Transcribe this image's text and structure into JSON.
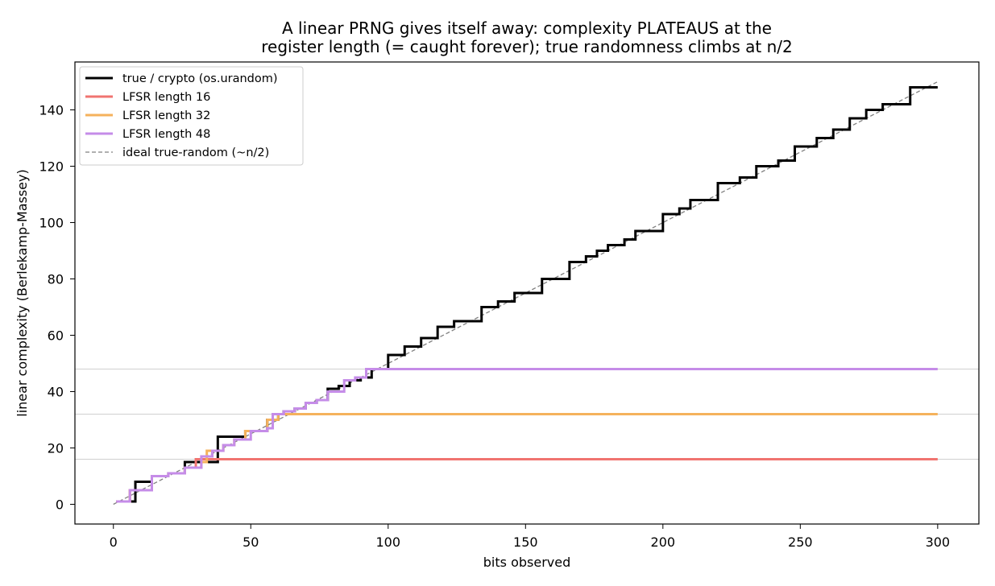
{
  "chart_data": {
    "type": "line",
    "title": [
      "A linear PRNG gives itself away: complexity PLATEAUS at the",
      "register length (= caught forever); true randomness climbs at n/2"
    ],
    "xlabel": "bits observed",
    "ylabel": "linear complexity (Berlekamp-Massey)",
    "xlim": [
      -14,
      315
    ],
    "ylim": [
      -7,
      157
    ],
    "xticks": [
      0,
      50,
      100,
      150,
      200,
      250,
      300
    ],
    "yticks": [
      0,
      20,
      40,
      60,
      80,
      100,
      120,
      140
    ],
    "grid": false,
    "legend_position": "top-left",
    "reference_lines_y": [
      16,
      32,
      48
    ],
    "series": [
      {
        "name": "true / crypto (os.urandom)",
        "color": "#000000",
        "style": "solid",
        "steps": [
          [
            1,
            1
          ],
          [
            8,
            8
          ],
          [
            14,
            10
          ],
          [
            20,
            11
          ],
          [
            26,
            15
          ],
          [
            38,
            24
          ],
          [
            48,
            26
          ],
          [
            52,
            26
          ],
          [
            56,
            30
          ],
          [
            60,
            32
          ],
          [
            62,
            33
          ],
          [
            66,
            34
          ],
          [
            70,
            36
          ],
          [
            74,
            37
          ],
          [
            78,
            41
          ],
          [
            82,
            42
          ],
          [
            86,
            44
          ],
          [
            90,
            45
          ],
          [
            94,
            48
          ],
          [
            100,
            53
          ],
          [
            106,
            56
          ],
          [
            112,
            59
          ],
          [
            118,
            63
          ],
          [
            124,
            65
          ],
          [
            134,
            70
          ],
          [
            140,
            72
          ],
          [
            146,
            75
          ],
          [
            156,
            80
          ],
          [
            166,
            86
          ],
          [
            172,
            88
          ],
          [
            176,
            90
          ],
          [
            180,
            92
          ],
          [
            186,
            94
          ],
          [
            190,
            97
          ],
          [
            200,
            103
          ],
          [
            206,
            105
          ],
          [
            210,
            108
          ],
          [
            220,
            114
          ],
          [
            228,
            116
          ],
          [
            234,
            120
          ],
          [
            242,
            122
          ],
          [
            248,
            127
          ],
          [
            256,
            130
          ],
          [
            262,
            133
          ],
          [
            268,
            137
          ],
          [
            274,
            140
          ],
          [
            280,
            142
          ],
          [
            290,
            148
          ],
          [
            300,
            148
          ]
        ]
      },
      {
        "name": "LFSR length 16",
        "color": "#f07470",
        "style": "solid",
        "steps": [
          [
            1,
            1
          ],
          [
            6,
            5
          ],
          [
            14,
            10
          ],
          [
            20,
            11
          ],
          [
            26,
            13
          ],
          [
            30,
            16
          ],
          [
            300,
            16
          ]
        ]
      },
      {
        "name": "LFSR length 32",
        "color": "#f5b25c",
        "style": "solid",
        "steps": [
          [
            1,
            1
          ],
          [
            6,
            5
          ],
          [
            14,
            10
          ],
          [
            20,
            11
          ],
          [
            26,
            13
          ],
          [
            32,
            15
          ],
          [
            34,
            19
          ],
          [
            40,
            21
          ],
          [
            44,
            23
          ],
          [
            48,
            26
          ],
          [
            52,
            26
          ],
          [
            56,
            30
          ],
          [
            60,
            32
          ],
          [
            300,
            32
          ]
        ]
      },
      {
        "name": "LFSR length 48",
        "color": "#c58ce8",
        "style": "solid",
        "steps": [
          [
            1,
            1
          ],
          [
            6,
            5
          ],
          [
            14,
            10
          ],
          [
            20,
            11
          ],
          [
            26,
            13
          ],
          [
            32,
            17
          ],
          [
            36,
            19
          ],
          [
            40,
            21
          ],
          [
            44,
            23
          ],
          [
            50,
            26
          ],
          [
            56,
            27
          ],
          [
            58,
            32
          ],
          [
            62,
            33
          ],
          [
            66,
            34
          ],
          [
            70,
            36
          ],
          [
            74,
            37
          ],
          [
            78,
            40
          ],
          [
            84,
            44
          ],
          [
            88,
            45
          ],
          [
            92,
            48
          ],
          [
            300,
            48
          ]
        ]
      },
      {
        "name": "ideal true-random (~n/2)",
        "color": "#808080",
        "style": "dashed",
        "line": [
          [
            0,
            0
          ],
          [
            300,
            150
          ]
        ]
      }
    ]
  }
}
